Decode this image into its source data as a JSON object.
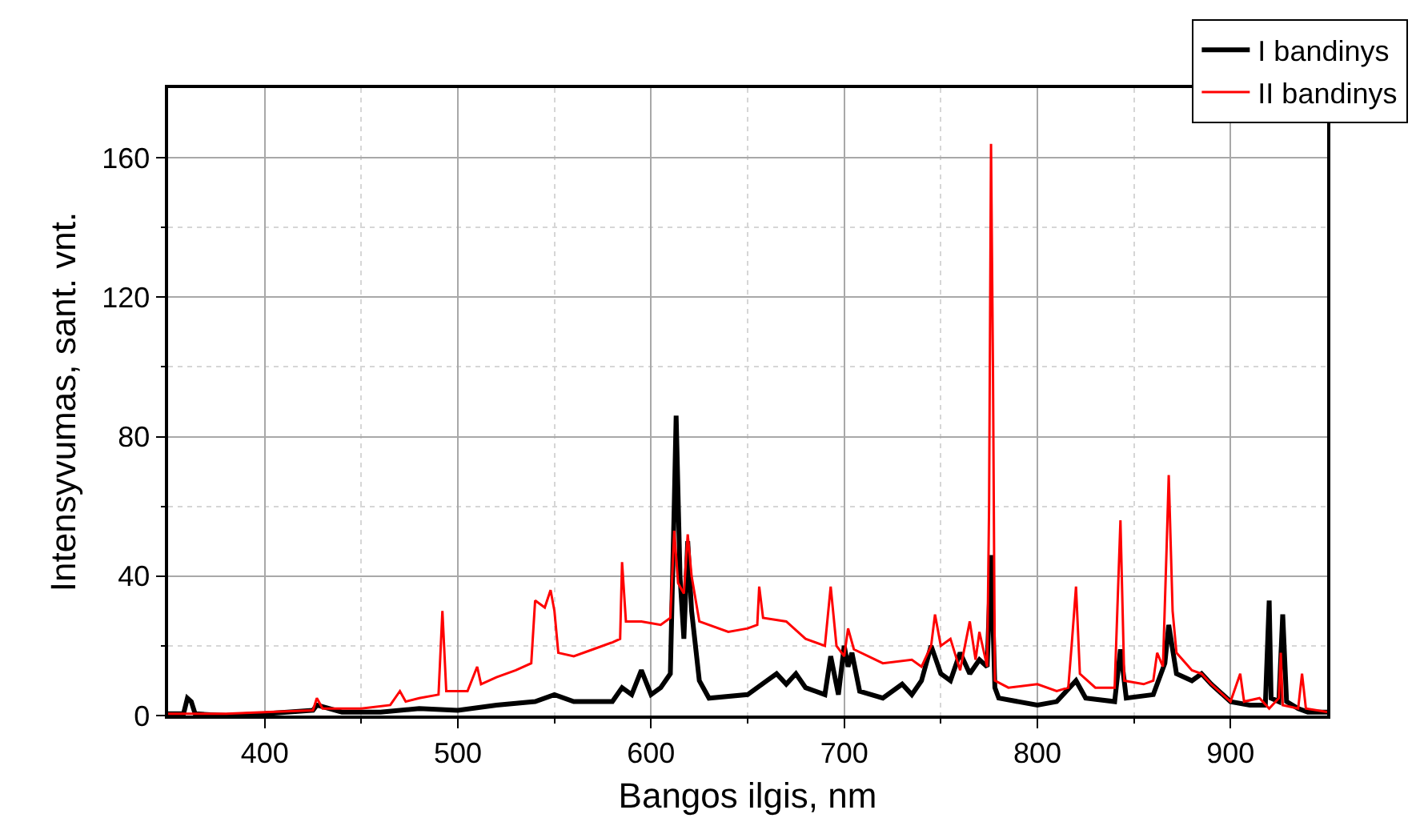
{
  "chart_data": {
    "type": "line",
    "xlabel": "Bangos ilgis, nm",
    "ylabel": "Intensyvumas, sant. vnt.",
    "xlim": [
      350,
      950
    ],
    "xticks": [
      400,
      500,
      600,
      700,
      800,
      900
    ],
    "ylim": [
      0,
      180
    ],
    "yticks": [
      0,
      40,
      80,
      120,
      160
    ],
    "grid": true,
    "legend": "top right",
    "marker": "none",
    "line_style": "solid",
    "series": [
      {
        "name": "I bandinys",
        "color": "#000000",
        "x": [
          350,
          358,
          360,
          362,
          364,
          380,
          400,
          425,
          427,
          440,
          460,
          480,
          500,
          520,
          540,
          550,
          560,
          580,
          585,
          590,
          595,
          600,
          605,
          610,
          612,
          613,
          615,
          617,
          619,
          621,
          625,
          630,
          650,
          660,
          665,
          670,
          675,
          680,
          690,
          693,
          697,
          700,
          702,
          704,
          708,
          720,
          730,
          735,
          740,
          745,
          750,
          755,
          760,
          765,
          770,
          774,
          776,
          778,
          780,
          800,
          810,
          820,
          825,
          840,
          843,
          846,
          860,
          866,
          868,
          872,
          880,
          885,
          890,
          900,
          910,
          918,
          920,
          921,
          925,
          927,
          929,
          935,
          940,
          950
        ],
        "values": [
          0.5,
          0.5,
          5,
          4,
          0.5,
          0,
          0.5,
          1.5,
          3,
          1,
          1,
          2,
          1.5,
          3,
          4,
          6,
          4,
          4,
          8,
          6,
          13,
          6,
          8,
          12,
          60,
          86,
          40,
          22,
          50,
          30,
          10,
          5,
          6,
          10,
          12,
          9,
          12,
          8,
          6,
          17,
          6,
          20,
          14,
          18,
          7,
          5,
          9,
          6,
          10,
          20,
          12,
          10,
          18,
          12,
          16,
          14,
          46,
          8,
          5,
          3,
          4,
          10,
          5,
          4,
          19,
          5,
          6,
          15,
          26,
          12,
          10,
          12,
          9,
          4,
          3,
          3,
          33,
          5,
          4,
          29,
          4,
          2,
          1,
          1
        ]
      },
      {
        "name": "II bandinys",
        "color": "#ff0000",
        "x": [
          350,
          380,
          400,
          425,
          427,
          430,
          450,
          465,
          470,
          473,
          480,
          490,
          492,
          494,
          505,
          510,
          512,
          520,
          530,
          538,
          540,
          545,
          548,
          550,
          552,
          560,
          570,
          580,
          584,
          585,
          587,
          595,
          605,
          610,
          612,
          614,
          617,
          619,
          621,
          625,
          640,
          650,
          655,
          656,
          658,
          670,
          680,
          690,
          693,
          696,
          700,
          702,
          705,
          720,
          735,
          740,
          745,
          747,
          750,
          755,
          760,
          765,
          768,
          770,
          774,
          775,
          776,
          777,
          778,
          785,
          800,
          810,
          816,
          818,
          820,
          822,
          830,
          840,
          843,
          845,
          855,
          860,
          862,
          865,
          867,
          868,
          870,
          872,
          880,
          885,
          890,
          900,
          905,
          907,
          915,
          920,
          925,
          926,
          927,
          935,
          937,
          939,
          950
        ],
        "values": [
          0.5,
          0.5,
          1,
          1.5,
          5,
          2,
          2,
          3,
          7,
          4,
          5,
          6,
          30,
          7,
          7,
          14,
          9,
          11,
          13,
          15,
          33,
          31,
          36,
          30,
          18,
          17,
          19,
          21,
          22,
          44,
          27,
          27,
          26,
          28,
          53,
          38,
          35,
          52,
          40,
          27,
          24,
          25,
          26,
          37,
          28,
          27,
          22,
          20,
          37,
          20,
          17,
          25,
          19,
          15,
          16,
          14,
          20,
          29,
          20,
          22,
          13,
          27,
          16,
          24,
          14,
          60,
          164,
          100,
          10,
          8,
          9,
          7,
          8,
          22,
          37,
          12,
          8,
          8,
          56,
          10,
          9,
          10,
          18,
          14,
          50,
          69,
          30,
          18,
          13,
          12,
          9,
          4,
          12,
          4,
          5,
          2,
          5,
          18,
          3,
          2,
          12,
          2,
          1
        ]
      }
    ]
  }
}
